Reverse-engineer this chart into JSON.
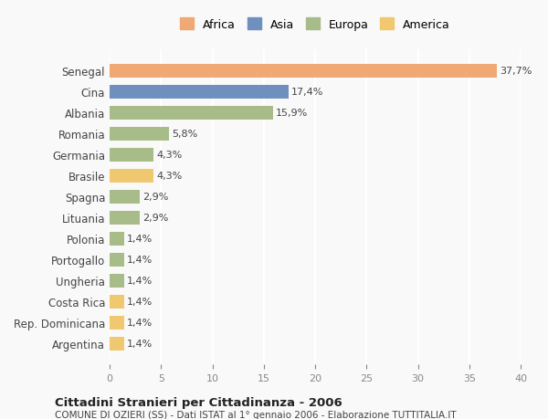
{
  "countries": [
    "Senegal",
    "Cina",
    "Albania",
    "Romania",
    "Germania",
    "Brasile",
    "Spagna",
    "Lituania",
    "Polonia",
    "Portogallo",
    "Ungheria",
    "Costa Rica",
    "Rep. Dominicana",
    "Argentina"
  ],
  "values": [
    37.7,
    17.4,
    15.9,
    5.8,
    4.3,
    4.3,
    2.9,
    2.9,
    1.4,
    1.4,
    1.4,
    1.4,
    1.4,
    1.4
  ],
  "labels": [
    "37,7%",
    "17,4%",
    "15,9%",
    "5,8%",
    "4,3%",
    "4,3%",
    "2,9%",
    "2,9%",
    "1,4%",
    "1,4%",
    "1,4%",
    "1,4%",
    "1,4%",
    "1,4%"
  ],
  "colors": [
    "#F0A875",
    "#6F8FBF",
    "#A8BC8A",
    "#A8BC8A",
    "#A8BC8A",
    "#F0C870",
    "#A8BC8A",
    "#A8BC8A",
    "#A8BC8A",
    "#A8BC8A",
    "#A8BC8A",
    "#F0C870",
    "#F0C870",
    "#F0C870"
  ],
  "legend_labels": [
    "Africa",
    "Asia",
    "Europa",
    "America"
  ],
  "legend_colors": [
    "#F0A875",
    "#6F8FBF",
    "#A8BC8A",
    "#F0C870"
  ],
  "xlim": [
    0,
    40
  ],
  "xticks": [
    0,
    5,
    10,
    15,
    20,
    25,
    30,
    35,
    40
  ],
  "title": "Cittadini Stranieri per Cittadinanza - 2006",
  "subtitle": "COMUNE DI OZIERI (SS) - Dati ISTAT al 1° gennaio 2006 - Elaborazione TUTTITALIA.IT",
  "background_color": "#f9f9f9",
  "grid_color": "#ffffff",
  "bar_height": 0.65
}
